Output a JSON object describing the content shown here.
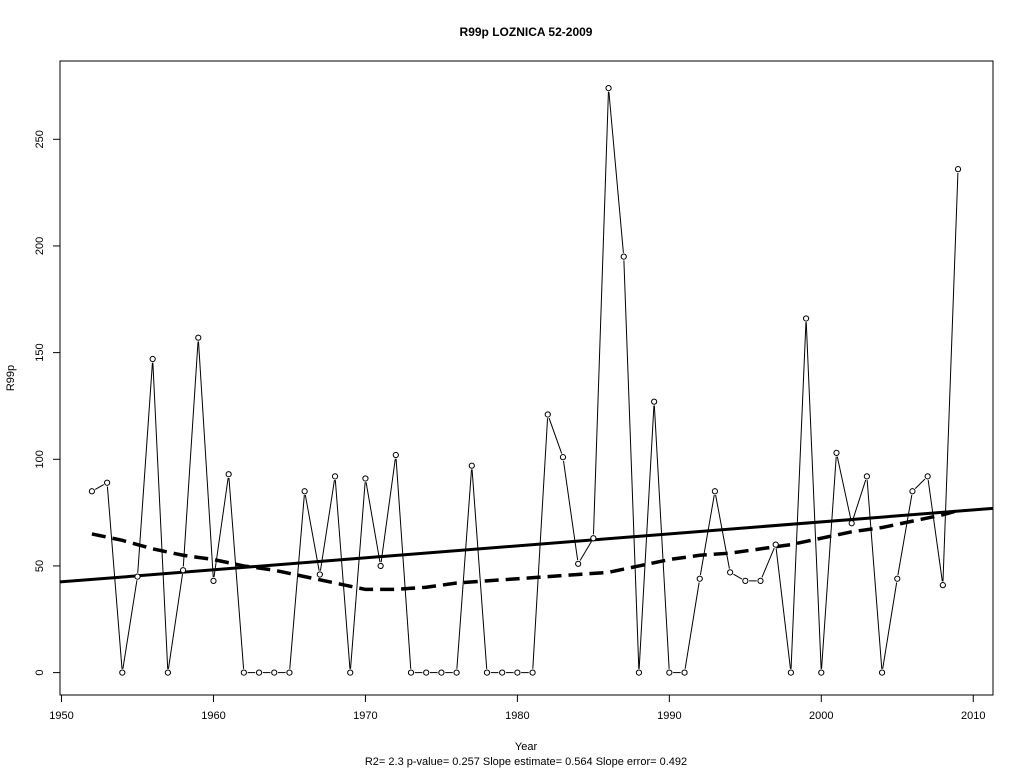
{
  "chart_data": {
    "type": "line",
    "title": "R99p   LOZNICA 52-2009",
    "xlabel": "Year",
    "ylabel": "R99p",
    "subtitle": "R2= 2.3  p-value= 0.257  Slope estimate= 0.564  Slope error= 0.492",
    "xlim": [
      1949.9,
      2011.3
    ],
    "ylim": [
      -10.5,
      286.7
    ],
    "xticks": [
      1950,
      1960,
      1970,
      1980,
      1990,
      2000,
      2010
    ],
    "yticks": [
      0,
      50,
      100,
      150,
      200,
      250
    ],
    "grid": false,
    "legend": "none",
    "series": [
      {
        "kind": "observed",
        "style": "thin line with open circle markers",
        "x": [
          1952,
          1953,
          1954,
          1955,
          1956,
          1957,
          1958,
          1959,
          1960,
          1961,
          1962,
          1963,
          1964,
          1965,
          1966,
          1967,
          1968,
          1969,
          1970,
          1971,
          1972,
          1973,
          1974,
          1975,
          1976,
          1977,
          1978,
          1979,
          1980,
          1981,
          1982,
          1983,
          1984,
          1985,
          1986,
          1987,
          1988,
          1989,
          1990,
          1991,
          1992,
          1993,
          1994,
          1995,
          1996,
          1997,
          1998,
          1999,
          2000,
          2001,
          2002,
          2003,
          2004,
          2005,
          2006,
          2007,
          2008,
          2009
        ],
        "values": [
          85,
          89,
          0,
          45,
          147,
          0,
          48,
          157,
          43,
          93,
          0,
          0,
          0,
          0,
          85,
          46,
          92,
          0,
          91,
          50,
          102,
          0,
          0,
          0,
          0,
          97,
          0,
          0,
          0,
          0,
          121,
          101,
          51,
          63,
          274,
          195,
          0,
          127,
          0,
          0,
          44,
          85,
          47,
          43,
          43,
          60,
          0,
          166,
          0,
          103,
          70,
          92,
          0,
          44,
          85,
          92,
          41,
          236
        ]
      },
      {
        "kind": "linear trend",
        "style": "thick solid line",
        "x": [
          1949.9,
          2011.3
        ],
        "values": [
          42.5,
          77.0
        ]
      },
      {
        "kind": "smoothed",
        "style": "thick dashed line",
        "x": [
          1952,
          1954,
          1956,
          1958,
          1960,
          1962,
          1964,
          1966,
          1968,
          1970,
          1972,
          1974,
          1976,
          1978,
          1980,
          1982,
          1984,
          1986,
          1988,
          1990,
          1992,
          1994,
          1996,
          1998,
          2000,
          2002,
          2004,
          2006,
          2008,
          2009
        ],
        "values": [
          65,
          62,
          58,
          55,
          53,
          50,
          48,
          45,
          42,
          39,
          39,
          40,
          42,
          43,
          44,
          45,
          46,
          47,
          50,
          53,
          55,
          56,
          58,
          60,
          63,
          66,
          68,
          71,
          74,
          76
        ]
      }
    ]
  }
}
